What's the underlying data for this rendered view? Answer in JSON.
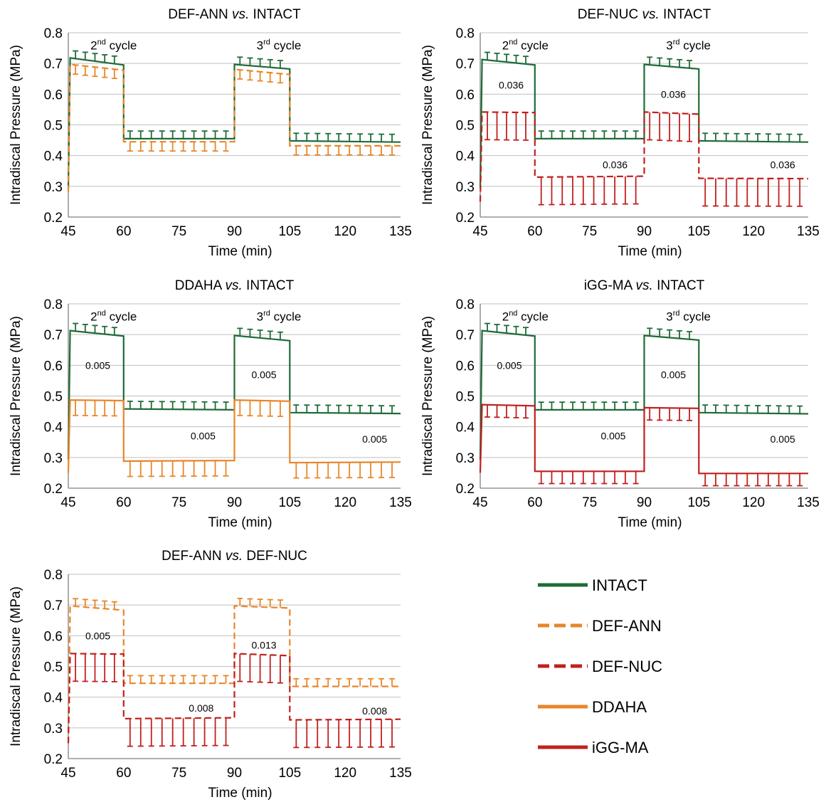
{
  "colors": {
    "INTACT": "#1f6b38",
    "DEF-ANN": "#e8862a",
    "DEF-NUC": "#c0201e",
    "DDAHA": "#e8862a",
    "iGG-MA": "#c0201e"
  },
  "legend": [
    {
      "name": "INTACT",
      "color": "#1f6b38",
      "dash": false
    },
    {
      "name": "DEF-ANN",
      "color": "#e8862a",
      "dash": true
    },
    {
      "name": "DEF-NUC",
      "color": "#c0201e",
      "dash": true
    },
    {
      "name": "DDAHA",
      "color": "#e8862a",
      "dash": false
    },
    {
      "name": "iGG-MA",
      "color": "#c0201e",
      "dash": false
    }
  ],
  "chart_data": [
    {
      "type": "line",
      "title": "DEF-ANN vs. INTACT",
      "title_parts": [
        "DEF-ANN ",
        "vs.",
        " INTACT"
      ],
      "xlabel": "Time (min)",
      "ylabel": "Intradiscal Pressure (MPa)",
      "xlim": [
        45,
        135
      ],
      "ylim": [
        0.2,
        0.8
      ],
      "xticks": [
        "45",
        "60",
        "75",
        "90",
        "105",
        "120",
        "135"
      ],
      "yticks": [
        "0.2",
        "0.3",
        "0.4",
        "0.5",
        "0.6",
        "0.7",
        "0.8"
      ],
      "cycle_labels": [
        {
          "base": "2",
          "sup": "nd",
          "rest": " cycle",
          "x": 51,
          "y": 0.76
        },
        {
          "base": "3",
          "sup": "rd",
          "rest": " cycle",
          "x": 96,
          "y": 0.76
        }
      ],
      "series": [
        {
          "name": "INTACT",
          "color": "#1f6b38",
          "dash": false,
          "err_dir": "up",
          "err": 0.025,
          "levels": [
            0.718,
            0.695,
            0.455,
            0.455,
            0.697,
            0.682,
            0.448,
            0.444
          ]
        },
        {
          "name": "DEF-ANN",
          "color": "#e8862a",
          "dash": true,
          "err_dir": "down",
          "err": 0.03,
          "levels": [
            0.697,
            0.678,
            0.445,
            0.445,
            0.681,
            0.664,
            0.432,
            0.432
          ]
        }
      ],
      "pvalues": []
    },
    {
      "type": "line",
      "title": "DEF-NUC vs. INTACT",
      "title_parts": [
        "DEF-NUC ",
        "vs.",
        " INTACT"
      ],
      "xlabel": "Time (min)",
      "ylabel": "Intradiscal Pressure (MPa)",
      "xlim": [
        45,
        135
      ],
      "ylim": [
        0.2,
        0.8
      ],
      "xticks": [
        "45",
        "60",
        "75",
        "90",
        "105",
        "120",
        "135"
      ],
      "yticks": [
        "0.2",
        "0.3",
        "0.4",
        "0.5",
        "0.6",
        "0.7",
        "0.8"
      ],
      "cycle_labels": [
        {
          "base": "2",
          "sup": "nd",
          "rest": " cycle",
          "x": 51,
          "y": 0.76
        },
        {
          "base": "3",
          "sup": "rd",
          "rest": " cycle",
          "x": 96,
          "y": 0.76
        }
      ],
      "series": [
        {
          "name": "INTACT",
          "color": "#1f6b38",
          "dash": false,
          "err_dir": "up",
          "err": 0.025,
          "levels": [
            0.713,
            0.695,
            0.455,
            0.455,
            0.697,
            0.682,
            0.448,
            0.444
          ]
        },
        {
          "name": "DEF-NUC",
          "color": "#c0201e",
          "dash": true,
          "err_dir": "down",
          "err": 0.09,
          "levels": [
            0.542,
            0.54,
            0.33,
            0.333,
            0.542,
            0.535,
            0.326,
            0.325
          ]
        }
      ],
      "pvalues": [
        {
          "text": "0.036",
          "x": 53.5,
          "y": 0.63
        },
        {
          "text": "0.036",
          "x": 98,
          "y": 0.6
        },
        {
          "text": "0.036",
          "x": 82,
          "y": 0.37
        },
        {
          "text": "0.036",
          "x": 128,
          "y": 0.37
        }
      ]
    },
    {
      "type": "line",
      "title": "DDAHA vs. INTACT",
      "title_parts": [
        "DDAHA ",
        "vs.",
        " INTACT"
      ],
      "xlabel": "Time (min)",
      "ylabel": "Intradiscal Pressure (MPa)",
      "xlim": [
        45,
        135
      ],
      "ylim": [
        0.2,
        0.8
      ],
      "xticks": [
        "45",
        "60",
        "75",
        "90",
        "105",
        "120",
        "135"
      ],
      "yticks": [
        "0.2",
        "0.3",
        "0.4",
        "0.5",
        "0.6",
        "0.7",
        "0.8"
      ],
      "cycle_labels": [
        {
          "base": "2",
          "sup": "nd",
          "rest": " cycle",
          "x": 51,
          "y": 0.76
        },
        {
          "base": "3",
          "sup": "rd",
          "rest": " cycle",
          "x": 96,
          "y": 0.76
        }
      ],
      "series": [
        {
          "name": "INTACT",
          "color": "#1f6b38",
          "dash": false,
          "err_dir": "up",
          "err": 0.025,
          "levels": [
            0.713,
            0.695,
            0.458,
            0.455,
            0.697,
            0.68,
            0.446,
            0.443
          ]
        },
        {
          "name": "DDAHA",
          "color": "#e8862a",
          "dash": false,
          "err_dir": "down",
          "err": 0.05,
          "levels": [
            0.487,
            0.485,
            0.288,
            0.29,
            0.487,
            0.483,
            0.283,
            0.285
          ]
        }
      ],
      "pvalues": [
        {
          "text": "0.005",
          "x": 53,
          "y": 0.6
        },
        {
          "text": "0.005",
          "x": 98,
          "y": 0.57
        },
        {
          "text": "0.005",
          "x": 81.5,
          "y": 0.37
        },
        {
          "text": "0.005",
          "x": 128,
          "y": 0.36
        }
      ]
    },
    {
      "type": "line",
      "title": "iGG-MA vs. INTACT",
      "title_parts": [
        "iGG-MA ",
        "vs.",
        " INTACT"
      ],
      "xlabel": "Time (min)",
      "ylabel": "Intradiscal Pressure (MPa)",
      "xlim": [
        45,
        135
      ],
      "ylim": [
        0.2,
        0.8
      ],
      "xticks": [
        "45",
        "60",
        "75",
        "90",
        "105",
        "120",
        "135"
      ],
      "yticks": [
        "0.2",
        "0.3",
        "0.4",
        "0.5",
        "0.6",
        "0.7",
        "0.8"
      ],
      "cycle_labels": [
        {
          "base": "2",
          "sup": "nd",
          "rest": " cycle",
          "x": 51,
          "y": 0.76
        },
        {
          "base": "3",
          "sup": "rd",
          "rest": " cycle",
          "x": 96,
          "y": 0.76
        }
      ],
      "series": [
        {
          "name": "INTACT",
          "color": "#1f6b38",
          "dash": false,
          "err_dir": "up",
          "err": 0.025,
          "levels": [
            0.713,
            0.695,
            0.455,
            0.455,
            0.697,
            0.682,
            0.446,
            0.442
          ]
        },
        {
          "name": "iGG-MA",
          "color": "#c0201e",
          "dash": false,
          "err_dir": "down",
          "err": 0.04,
          "levels": [
            0.472,
            0.468,
            0.255,
            0.255,
            0.462,
            0.46,
            0.248,
            0.248
          ]
        }
      ],
      "pvalues": [
        {
          "text": "0.005",
          "x": 53,
          "y": 0.6
        },
        {
          "text": "0.005",
          "x": 98,
          "y": 0.57
        },
        {
          "text": "0.005",
          "x": 81.5,
          "y": 0.37
        },
        {
          "text": "0.005",
          "x": 128,
          "y": 0.36
        }
      ]
    },
    {
      "type": "line",
      "title": "DEF-ANN vs. DEF-NUC",
      "title_parts": [
        "DEF-ANN ",
        "vs.",
        " DEF-NUC"
      ],
      "xlabel": "Time (min)",
      "ylabel": "Intradiscal Pressure (MPa)",
      "xlim": [
        45,
        135
      ],
      "ylim": [
        0.2,
        0.8
      ],
      "xticks": [
        "45",
        "60",
        "75",
        "90",
        "105",
        "120",
        "135"
      ],
      "yticks": [
        "0.2",
        "0.3",
        "0.4",
        "0.5",
        "0.6",
        "0.7",
        "0.8"
      ],
      "cycle_labels": [],
      "series": [
        {
          "name": "DEF-ANN",
          "color": "#e8862a",
          "dash": true,
          "err_dir": "up",
          "err": 0.025,
          "levels": [
            0.697,
            0.683,
            0.445,
            0.445,
            0.697,
            0.69,
            0.435,
            0.435
          ]
        },
        {
          "name": "DEF-NUC",
          "color": "#c0201e",
          "dash": true,
          "err_dir": "down",
          "err": 0.09,
          "levels": [
            0.542,
            0.54,
            0.33,
            0.333,
            0.542,
            0.535,
            0.326,
            0.328
          ]
        }
      ],
      "pvalues": [
        {
          "text": "0.005",
          "x": 53,
          "y": 0.6
        },
        {
          "text": "0.013",
          "x": 98,
          "y": 0.57
        },
        {
          "text": "0.008",
          "x": 81,
          "y": 0.365
        },
        {
          "text": "0.008",
          "x": 128,
          "y": 0.355
        }
      ]
    }
  ]
}
